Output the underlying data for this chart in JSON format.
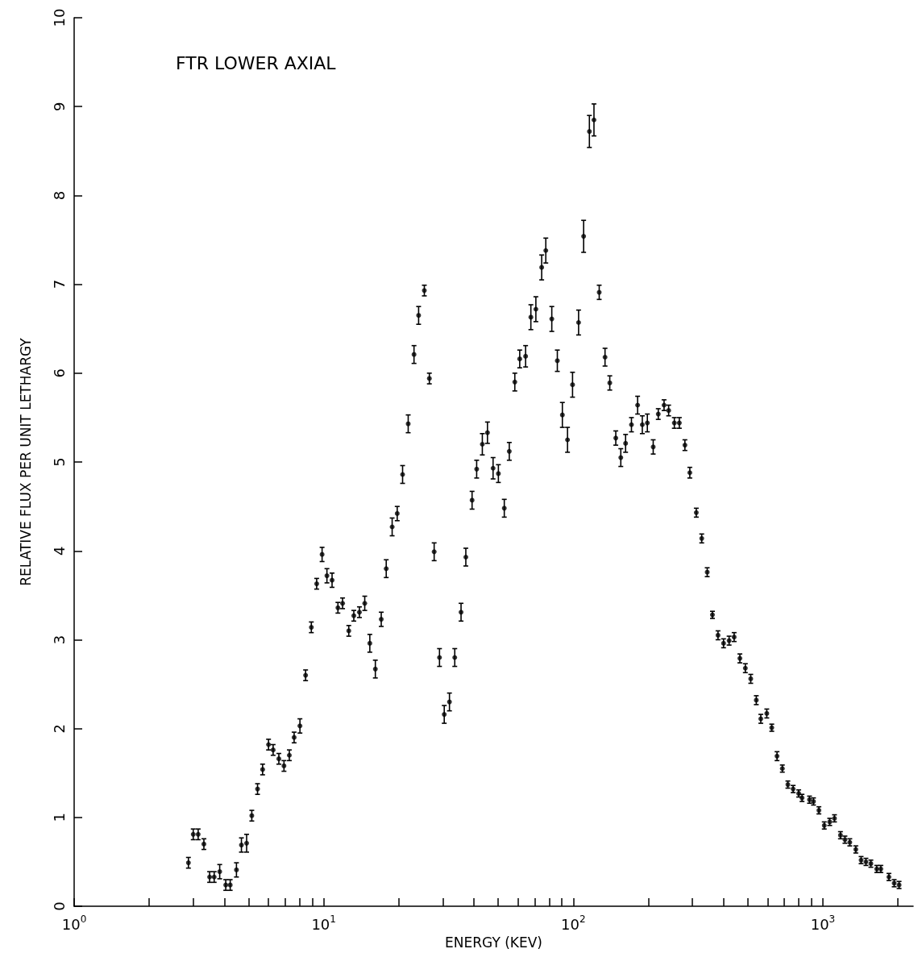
{
  "chart_data": {
    "type": "scatter",
    "title": "FTR LOWER AXIAL",
    "xlabel": "ENERGY (KEV)",
    "ylabel": "RELATIVE FLUX PER UNIT LETHARGY",
    "log": "x",
    "marker": "circle",
    "xlim": [
      1,
      2300
    ],
    "xticks": [
      {
        "value": 1,
        "label": "10$^{0}$"
      },
      {
        "value": 2,
        "label": null
      },
      {
        "value": 3,
        "label": null
      },
      {
        "value": 4,
        "label": null
      },
      {
        "value": 5,
        "label": null
      },
      {
        "value": 6,
        "label": null
      },
      {
        "value": 7,
        "label": null
      },
      {
        "value": 8,
        "label": null
      },
      {
        "value": 9,
        "label": null
      },
      {
        "value": 10,
        "label": "10$^{1}$"
      },
      {
        "value": 20,
        "label": null
      },
      {
        "value": 30,
        "label": null
      },
      {
        "value": 40,
        "label": null
      },
      {
        "value": 50,
        "label": null
      },
      {
        "value": 60,
        "label": null
      },
      {
        "value": 70,
        "label": null
      },
      {
        "value": 80,
        "label": null
      },
      {
        "value": 90,
        "label": null
      },
      {
        "value": 100,
        "label": "10$^{2}$"
      },
      {
        "value": 200,
        "label": null
      },
      {
        "value": 300,
        "label": null
      },
      {
        "value": 400,
        "label": null
      },
      {
        "value": 500,
        "label": null
      },
      {
        "value": 600,
        "label": null
      },
      {
        "value": 700,
        "label": null
      },
      {
        "value": 800,
        "label": null
      },
      {
        "value": 900,
        "label": null
      },
      {
        "value": 1000,
        "label": "10$^{3}$"
      },
      {
        "value": 2000,
        "label": null
      }
    ],
    "ylim": [
      0,
      10
    ],
    "yticks": [
      0,
      1,
      2,
      3,
      4,
      5,
      6,
      7,
      8,
      9,
      10
    ],
    "series": [
      {
        "color": "#000000",
        "x": [
          2.87,
          3.0,
          3.14,
          3.31,
          3.49,
          3.64,
          3.83,
          4.05,
          4.22,
          4.47,
          4.68,
          4.91,
          5.15,
          5.43,
          5.69,
          6.01,
          6.27,
          6.61,
          6.93,
          7.28,
          7.61,
          8.03,
          8.46,
          8.92,
          9.37,
          9.85,
          10.3,
          10.8,
          11.4,
          11.9,
          12.6,
          13.2,
          13.9,
          14.6,
          15.3,
          16.1,
          17.0,
          17.8,
          18.8,
          19.7,
          20.7,
          21.8,
          23.0,
          24.0,
          25.3,
          26.5,
          27.7,
          29.1,
          30.4,
          31.9,
          33.5,
          35.5,
          37.1,
          39.3,
          41.0,
          43.2,
          45.3,
          47.7,
          50.1,
          52.9,
          55.4,
          58.3,
          61.0,
          64.4,
          67.6,
          70.8,
          74.7,
          77.6,
          82.0,
          86.3,
          90.4,
          94.8,
          99.3,
          105,
          110,
          116,
          121,
          127,
          134,
          140,
          148,
          155,
          162,
          171,
          181,
          189,
          198,
          209,
          219,
          231,
          241,
          254,
          266,
          280,
          293,
          311,
          327,
          344,
          361,
          380,
          400,
          421,
          441,
          465,
          489,
          514,
          541,
          564,
          596,
          624,
          655,
          688,
          724,
          760,
          800,
          825,
          884,
          917,
          964,
          1013,
          1065,
          1113,
          1176,
          1226,
          1282,
          1355,
          1423,
          1488,
          1557,
          1644,
          1707,
          1839,
          1931,
          2020
        ],
        "values": [
          0.49,
          0.81,
          0.81,
          0.7,
          0.33,
          0.33,
          0.39,
          0.24,
          0.24,
          0.41,
          0.69,
          0.71,
          1.02,
          1.32,
          1.54,
          1.82,
          1.76,
          1.66,
          1.58,
          1.7,
          1.9,
          2.03,
          2.6,
          3.14,
          3.63,
          3.96,
          3.72,
          3.67,
          3.36,
          3.41,
          3.1,
          3.27,
          3.31,
          3.41,
          2.96,
          2.67,
          3.23,
          3.8,
          4.27,
          4.42,
          4.86,
          5.43,
          6.21,
          6.65,
          6.93,
          5.94,
          3.99,
          2.8,
          2.16,
          2.3,
          2.8,
          3.31,
          3.93,
          4.57,
          4.92,
          5.2,
          5.33,
          4.93,
          4.87,
          4.48,
          5.12,
          5.9,
          6.16,
          6.19,
          6.63,
          6.72,
          7.19,
          7.38,
          6.61,
          6.14,
          5.53,
          5.25,
          5.87,
          6.57,
          7.54,
          8.72,
          8.85,
          6.91,
          6.18,
          5.89,
          5.27,
          5.05,
          5.21,
          5.42,
          5.64,
          5.42,
          5.44,
          5.17,
          5.54,
          5.64,
          5.58,
          5.44,
          5.44,
          5.19,
          4.88,
          4.43,
          4.14,
          3.76,
          3.28,
          3.05,
          2.96,
          2.99,
          3.03,
          2.79,
          2.68,
          2.56,
          2.32,
          2.11,
          2.17,
          2.01,
          1.69,
          1.55,
          1.37,
          1.32,
          1.27,
          1.22,
          1.2,
          1.18,
          1.08,
          0.91,
          0.95,
          0.99,
          0.8,
          0.75,
          0.72,
          0.64,
          0.52,
          0.5,
          0.48,
          0.42,
          0.42,
          0.33,
          0.26,
          0.24
        ],
        "errors": [
          0.06,
          0.06,
          0.06,
          0.06,
          0.06,
          0.06,
          0.08,
          0.06,
          0.06,
          0.08,
          0.08,
          0.1,
          0.06,
          0.06,
          0.06,
          0.06,
          0.06,
          0.06,
          0.06,
          0.06,
          0.06,
          0.08,
          0.06,
          0.06,
          0.06,
          0.08,
          0.08,
          0.08,
          0.06,
          0.06,
          0.06,
          0.06,
          0.06,
          0.08,
          0.1,
          0.1,
          0.08,
          0.1,
          0.1,
          0.08,
          0.1,
          0.1,
          0.1,
          0.1,
          0.06,
          0.06,
          0.1,
          0.1,
          0.1,
          0.1,
          0.1,
          0.1,
          0.1,
          0.1,
          0.1,
          0.12,
          0.12,
          0.12,
          0.1,
          0.1,
          0.1,
          0.1,
          0.1,
          0.12,
          0.14,
          0.14,
          0.14,
          0.14,
          0.14,
          0.12,
          0.14,
          0.14,
          0.14,
          0.14,
          0.18,
          0.18,
          0.18,
          0.08,
          0.1,
          0.08,
          0.08,
          0.1,
          0.1,
          0.08,
          0.1,
          0.1,
          0.1,
          0.08,
          0.06,
          0.06,
          0.06,
          0.06,
          0.06,
          0.06,
          0.06,
          0.05,
          0.05,
          0.05,
          0.04,
          0.05,
          0.05,
          0.05,
          0.05,
          0.05,
          0.05,
          0.05,
          0.05,
          0.05,
          0.05,
          0.04,
          0.05,
          0.04,
          0.04,
          0.04,
          0.04,
          0.04,
          0.04,
          0.04,
          0.04,
          0.04,
          0.04,
          0.04,
          0.04,
          0.04,
          0.04,
          0.04,
          0.04,
          0.04,
          0.04,
          0.04,
          0.04,
          0.04,
          0.04,
          0.04
        ]
      }
    ]
  }
}
